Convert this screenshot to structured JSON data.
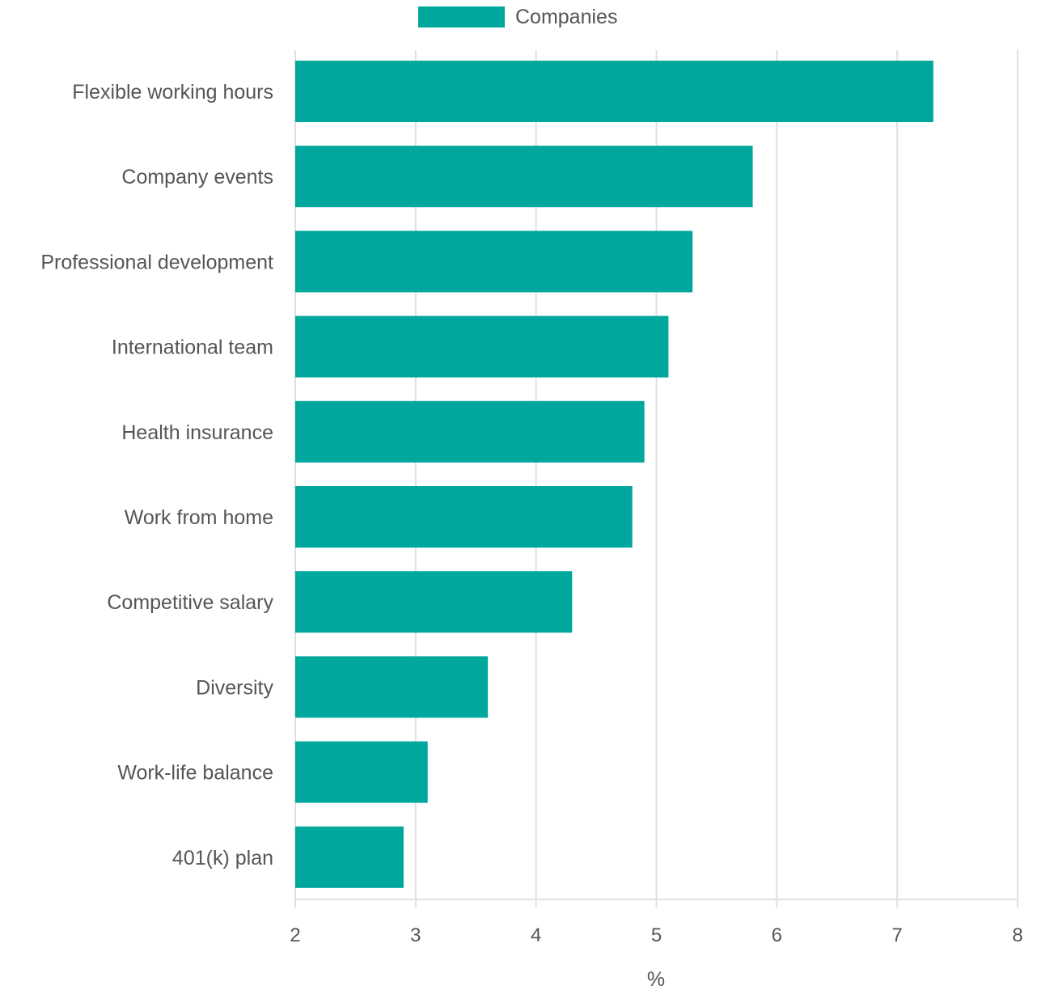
{
  "chart_data": {
    "type": "bar",
    "orientation": "horizontal",
    "categories": [
      "Flexible working hours",
      "Company events",
      "Professional development",
      "International team",
      "Health insurance",
      "Work from home",
      "Competitive salary",
      "Diversity",
      "Work-life balance",
      "401(k) plan"
    ],
    "series": [
      {
        "name": "Companies",
        "color": "#00a79d",
        "values": [
          7.3,
          5.8,
          5.3,
          5.1,
          4.9,
          4.8,
          4.3,
          3.6,
          3.1,
          2.9
        ]
      }
    ],
    "xlabel": "%",
    "ylabel": "",
    "xlim": [
      2,
      8
    ],
    "xticks": [
      "2",
      "3",
      "4",
      "5",
      "6",
      "7",
      "8"
    ],
    "grid": true,
    "legend_position": "top-center"
  },
  "colors": {
    "bar": "#00a79d",
    "grid": "#e0e0e0",
    "text": "#555555"
  }
}
